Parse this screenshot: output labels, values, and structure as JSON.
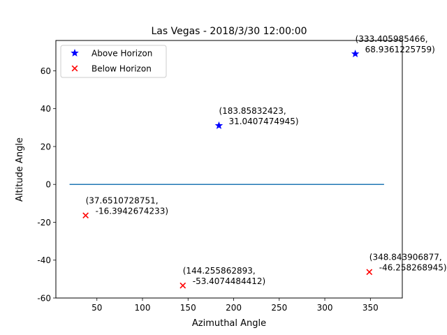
{
  "chart_data": {
    "type": "scatter",
    "title": "Las Vegas - 2018/3/30 12:00:00",
    "xlabel": "Azimuthal Angle",
    "ylabel": "Altitude Angle",
    "xlim": [
      5,
      385
    ],
    "ylim": [
      -60,
      76
    ],
    "x_ticks": [
      50,
      100,
      150,
      200,
      250,
      300,
      350
    ],
    "y_ticks": [
      -60,
      -40,
      -20,
      0,
      20,
      40,
      60
    ],
    "grid": false,
    "legend_position": "top-left",
    "horizon_line": {
      "x": [
        20,
        365
      ],
      "y": [
        0,
        0
      ],
      "color": "#1f77b4"
    },
    "series": [
      {
        "name": "Above Horizon",
        "marker": "star",
        "color": "#0000ff",
        "points": [
          {
            "x": 333.405985466,
            "y": 68.9361225759,
            "label_line1": "(333.405985466,",
            "label_line2": "68.9361225759)"
          },
          {
            "x": 183.85832423,
            "y": 31.0407474945,
            "label_line1": "(183.85832423,",
            "label_line2": "31.0407474945)"
          }
        ]
      },
      {
        "name": "Below Horizon",
        "marker": "x",
        "color": "#ff0000",
        "points": [
          {
            "x": 37.6510728751,
            "y": -16.3942674233,
            "label_line1": "(37.6510728751,",
            "label_line2": "-16.3942674233)"
          },
          {
            "x": 144.255862893,
            "y": -53.4074484412,
            "label_line1": "(144.255862893,",
            "label_line2": "-53.4074484412)"
          },
          {
            "x": 348.843906877,
            "y": -46.258268945,
            "label_line1": "(348.843906877,",
            "label_line2": "-46.258268945)"
          }
        ]
      }
    ]
  }
}
